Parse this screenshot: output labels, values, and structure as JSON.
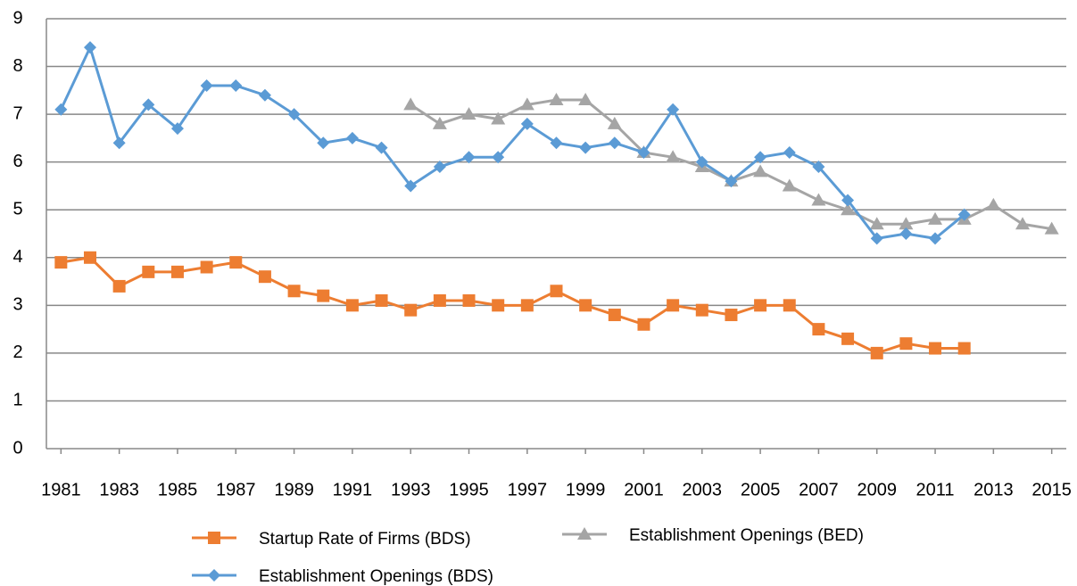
{
  "chart_data": {
    "type": "line",
    "x": [
      1981,
      1982,
      1983,
      1984,
      1985,
      1986,
      1987,
      1988,
      1989,
      1990,
      1991,
      1992,
      1993,
      1994,
      1995,
      1996,
      1997,
      1998,
      1999,
      2000,
      2001,
      2002,
      2003,
      2004,
      2005,
      2006,
      2007,
      2008,
      2009,
      2010,
      2011,
      2012,
      2013,
      2014,
      2015
    ],
    "xlim": [
      1980.5,
      2015.5
    ],
    "xticks": [
      1981,
      1983,
      1985,
      1987,
      1989,
      1991,
      1993,
      1995,
      1997,
      1999,
      2001,
      2003,
      2005,
      2007,
      2009,
      2011,
      2013,
      2015
    ],
    "ylim": [
      0,
      9
    ],
    "yticks": [
      0,
      1,
      2,
      3,
      4,
      5,
      6,
      7,
      8,
      9
    ],
    "grid": true,
    "series": [
      {
        "name": "Startup Rate of Firms (BDS)",
        "color": "#ed7d31",
        "marker": "square",
        "values": [
          3.9,
          4.0,
          3.4,
          3.7,
          3.7,
          3.8,
          3.9,
          3.6,
          3.3,
          3.2,
          3.0,
          3.1,
          2.9,
          3.1,
          3.1,
          3.0,
          3.0,
          3.3,
          3.0,
          2.8,
          2.6,
          3.0,
          2.9,
          2.8,
          3.0,
          3.0,
          2.5,
          2.3,
          2.0,
          2.2,
          2.1,
          2.1,
          null,
          null,
          null
        ]
      },
      {
        "name": "Establishment Openings (BED)",
        "color": "#a5a5a5",
        "marker": "triangle",
        "values": [
          null,
          null,
          null,
          null,
          null,
          null,
          null,
          null,
          null,
          null,
          null,
          null,
          7.2,
          6.8,
          7.0,
          6.9,
          7.2,
          7.3,
          7.3,
          6.8,
          6.2,
          6.1,
          5.9,
          5.6,
          5.8,
          5.5,
          5.2,
          5.0,
          4.7,
          4.7,
          4.8,
          4.8,
          5.1,
          4.7,
          4.6
        ]
      },
      {
        "name": "Establishment Openings (BDS)",
        "color": "#5b9bd5",
        "marker": "diamond",
        "values": [
          7.1,
          8.4,
          6.4,
          7.2,
          6.7,
          7.6,
          7.6,
          7.4,
          7.0,
          6.4,
          6.5,
          6.3,
          5.5,
          5.9,
          6.1,
          6.1,
          6.8,
          6.4,
          6.3,
          6.4,
          6.2,
          7.1,
          6.0,
          5.6,
          6.1,
          6.2,
          5.9,
          5.2,
          4.4,
          4.5,
          4.4,
          4.9,
          null,
          null,
          null
        ]
      }
    ]
  }
}
